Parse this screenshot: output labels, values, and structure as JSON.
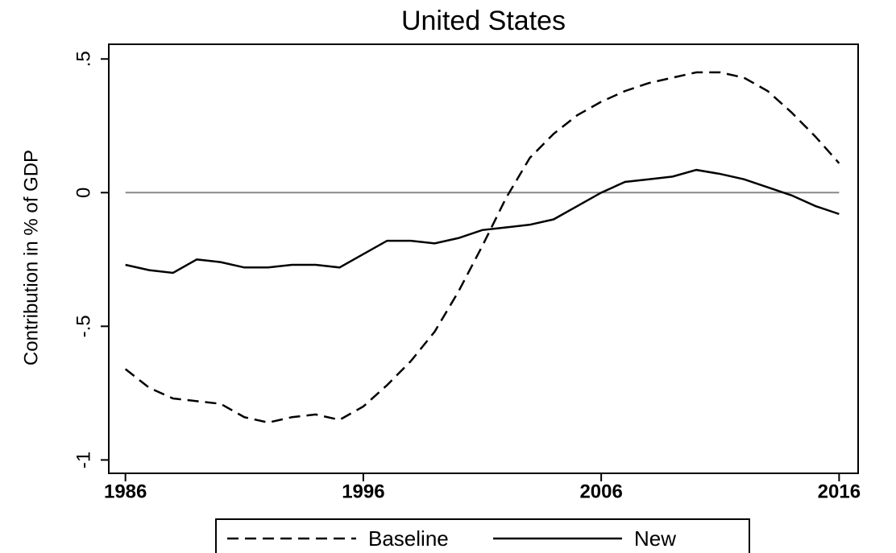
{
  "chart_data": {
    "type": "line",
    "title": "United States",
    "ylabel": "Contribution in % of GDP",
    "x": [
      1986,
      1987,
      1988,
      1989,
      1990,
      1991,
      1992,
      1993,
      1994,
      1995,
      1996,
      1997,
      1998,
      1999,
      2000,
      2001,
      2002,
      2003,
      2004,
      2005,
      2006,
      2007,
      2008,
      2009,
      2010,
      2011,
      2012,
      2013,
      2014,
      2015,
      2016
    ],
    "series": [
      {
        "name": "Baseline",
        "color": "#000000",
        "dash": "dashed",
        "values": [
          -0.66,
          -0.73,
          -0.77,
          -0.78,
          -0.79,
          -0.84,
          -0.86,
          -0.84,
          -0.83,
          -0.85,
          -0.8,
          -0.72,
          -0.63,
          -0.52,
          -0.37,
          -0.2,
          -0.02,
          0.13,
          0.22,
          0.29,
          0.34,
          0.38,
          0.41,
          0.43,
          0.45,
          0.45,
          0.43,
          0.38,
          0.3,
          0.21,
          0.11
        ]
      },
      {
        "name": "New",
        "color": "#000000",
        "dash": "solid",
        "values": [
          -0.27,
          -0.29,
          -0.3,
          -0.25,
          -0.26,
          -0.28,
          -0.28,
          -0.27,
          -0.27,
          -0.28,
          -0.23,
          -0.18,
          -0.18,
          -0.19,
          -0.17,
          -0.14,
          -0.13,
          -0.12,
          -0.1,
          -0.05,
          0.0,
          0.04,
          0.05,
          0.06,
          0.085,
          0.07,
          0.05,
          0.02,
          -0.01,
          -0.05,
          -0.08
        ]
      }
    ],
    "xlim": [
      1985.3,
      2016.8
    ],
    "xticks": [
      1986,
      1996,
      2006,
      2016
    ],
    "ylim": [
      -1.05,
      0.555
    ],
    "yticks": [
      {
        "value": 0.5,
        "label": ".5"
      },
      0,
      {
        "value": -0.5,
        "label": "-.5"
      },
      -1
    ],
    "hline": 0,
    "legend": "bottom"
  }
}
